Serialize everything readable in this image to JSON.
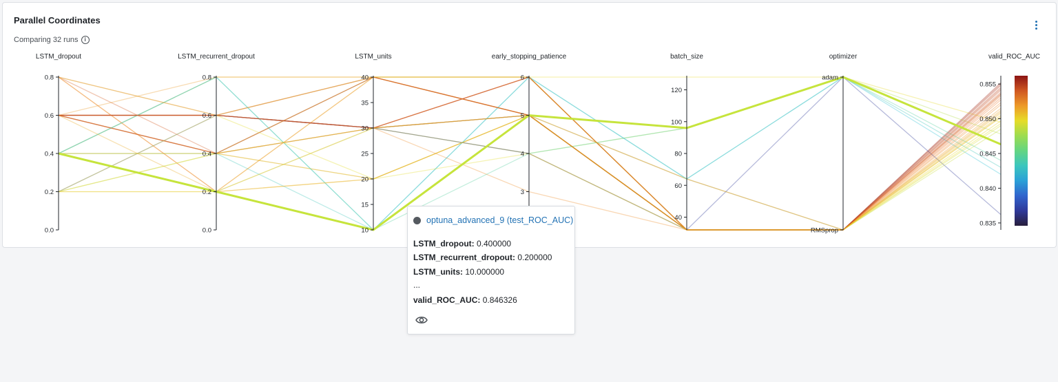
{
  "panel": {
    "title": "Parallel Coordinates",
    "subtitle": "Comparing 32 runs",
    "info_icon": "info-icon",
    "menu_icon": "kebab-menu-icon"
  },
  "colors": {
    "highlight": "#c6e43c",
    "axis": "#1f2328",
    "accent": "#2272b4"
  },
  "chart_data": {
    "type": "parallel_coordinates",
    "axes": [
      {
        "name": "LSTM_dropout",
        "range": [
          0,
          0.8
        ],
        "ticks": [
          "0.0",
          "0.2",
          "0.4",
          "0.6",
          "0.8"
        ],
        "tick_values": [
          0,
          0.2,
          0.4,
          0.6,
          0.8
        ]
      },
      {
        "name": "LSTM_recurrent_dropout",
        "range": [
          0,
          0.8
        ],
        "ticks": [
          "0.0",
          "0.2",
          "0.4",
          "0.6",
          "0.8"
        ],
        "tick_values": [
          0,
          0.2,
          0.4,
          0.6,
          0.8
        ]
      },
      {
        "name": "LSTM_units",
        "range": [
          10,
          40
        ],
        "ticks": [
          "10",
          "15",
          "20",
          "25",
          "30",
          "35",
          "40"
        ],
        "tick_values": [
          10,
          15,
          20,
          25,
          30,
          35,
          40
        ]
      },
      {
        "name": "early_stopping_patience",
        "range": [
          2,
          6
        ],
        "ticks": [
          "3",
          "4",
          "5",
          "6"
        ],
        "tick_values": [
          3,
          4,
          5,
          6
        ]
      },
      {
        "name": "batch_size",
        "range": [
          32,
          128
        ],
        "ticks": [
          "40",
          "60",
          "80",
          "100",
          "120"
        ],
        "tick_values": [
          40,
          60,
          80,
          100,
          120
        ]
      },
      {
        "name": "optimizer",
        "categorical": true,
        "categories": [
          "RMSprop",
          "adam"
        ]
      },
      {
        "name": "valid_ROC_AUC",
        "range": [
          0.834,
          0.856
        ],
        "ticks": [
          "0.835",
          "0.840",
          "0.845",
          "0.850",
          "0.855"
        ],
        "tick_values": [
          0.835,
          0.84,
          0.845,
          0.85,
          0.855
        ]
      }
    ],
    "color_scale": {
      "metric": "valid_ROC_AUC",
      "range": [
        0.834,
        0.856
      ],
      "colormap": "jet"
    },
    "highlighted_run": "optuna_advanced_9 (test_ROC_AUC)",
    "runs": [
      {
        "values": [
          0.4,
          0.2,
          10,
          5,
          96,
          "adam",
          0.846326
        ],
        "highlight": true
      },
      {
        "values": [
          0.6,
          0.6,
          30,
          5,
          64,
          "RMSprop",
          0.8548
        ]
      },
      {
        "values": [
          0.8,
          0.4,
          30,
          6,
          32,
          "RMSprop",
          0.8536
        ]
      },
      {
        "values": [
          0.6,
          0.4,
          40,
          5,
          32,
          "RMSprop",
          0.8552
        ]
      },
      {
        "values": [
          0.6,
          0.6,
          30,
          6,
          32,
          "RMSprop",
          0.853
        ]
      },
      {
        "values": [
          0.4,
          0.8,
          40,
          5,
          32,
          "RMSprop",
          0.8505
        ]
      },
      {
        "values": [
          0.2,
          0.2,
          40,
          6,
          128,
          "adam",
          0.8495
        ]
      },
      {
        "values": [
          0.8,
          0.2,
          30,
          4,
          32,
          "RMSprop",
          0.8512
        ]
      },
      {
        "values": [
          0.6,
          0.4,
          20,
          5,
          32,
          "RMSprop",
          0.8523
        ]
      },
      {
        "values": [
          0.2,
          0.4,
          30,
          4,
          96,
          "adam",
          0.8478
        ]
      },
      {
        "values": [
          0.6,
          0.6,
          40,
          6,
          32,
          "RMSprop",
          0.8541
        ]
      },
      {
        "values": [
          0.4,
          0.8,
          10,
          6,
          64,
          "adam",
          0.842
        ]
      },
      {
        "values": [
          0.2,
          0.2,
          20,
          5,
          32,
          "RMSprop",
          0.8502
        ]
      },
      {
        "values": [
          0.6,
          0.6,
          30,
          5,
          32,
          "RMSprop",
          0.855
        ]
      },
      {
        "values": [
          0.8,
          0.6,
          40,
          5,
          32,
          "RMSprop",
          0.8533
        ]
      },
      {
        "values": [
          0.4,
          0.4,
          10,
          6,
          64,
          "adam",
          0.843
        ]
      },
      {
        "values": [
          0.6,
          0.8,
          40,
          5,
          32,
          "RMSprop",
          0.8515
        ]
      },
      {
        "values": [
          0.2,
          0.6,
          30,
          4,
          32,
          "adam",
          0.8362
        ]
      },
      {
        "values": [
          0.6,
          0.6,
          30,
          6,
          32,
          "RMSprop",
          0.8545
        ]
      },
      {
        "values": [
          0.4,
          0.4,
          20,
          5,
          64,
          "RMSprop",
          0.849
        ]
      },
      {
        "values": [
          0.8,
          0.2,
          40,
          5,
          32,
          "RMSprop",
          0.8527
        ]
      },
      {
        "values": [
          0.6,
          0.4,
          30,
          3,
          32,
          "RMSprop",
          0.852
        ]
      },
      {
        "values": [
          0.4,
          0.8,
          10,
          4,
          96,
          "adam",
          0.844
        ]
      },
      {
        "values": [
          0.2,
          0.4,
          40,
          6,
          32,
          "RMSprop",
          0.8497
        ]
      },
      {
        "values": [
          0.6,
          0.6,
          30,
          5,
          32,
          "RMSprop",
          0.8538
        ]
      },
      {
        "values": [
          0.6,
          0.2,
          20,
          5,
          32,
          "RMSprop",
          0.851
        ]
      },
      {
        "values": [
          0.8,
          0.6,
          40,
          6,
          32,
          "RMSprop",
          0.8503
        ]
      },
      {
        "values": [
          0.4,
          0.2,
          30,
          5,
          32,
          "RMSprop",
          0.8485
        ]
      },
      {
        "values": [
          0.6,
          0.4,
          40,
          5,
          32,
          "RMSprop",
          0.8543
        ]
      },
      {
        "values": [
          0.2,
          0.6,
          20,
          4,
          32,
          "RMSprop",
          0.8493
        ]
      },
      {
        "values": [
          0.6,
          0.6,
          30,
          6,
          32,
          "RMSprop",
          0.8535
        ]
      },
      {
        "values": [
          0.4,
          0.4,
          30,
          5,
          32,
          "RMSprop",
          0.8508
        ]
      }
    ]
  },
  "tooltip": {
    "run_name": "optuna_advanced_9 (test_ROC_AUC)",
    "rows": [
      {
        "label": "LSTM_dropout:",
        "value": "0.400000"
      },
      {
        "label": "LSTM_recurrent_dropout:",
        "value": "0.200000"
      },
      {
        "label": "LSTM_units:",
        "value": "10.000000"
      },
      {
        "label": "...",
        "value": ""
      },
      {
        "label": "valid_ROC_AUC:",
        "value": "0.846326"
      }
    ],
    "eye_icon": "eye-icon"
  }
}
